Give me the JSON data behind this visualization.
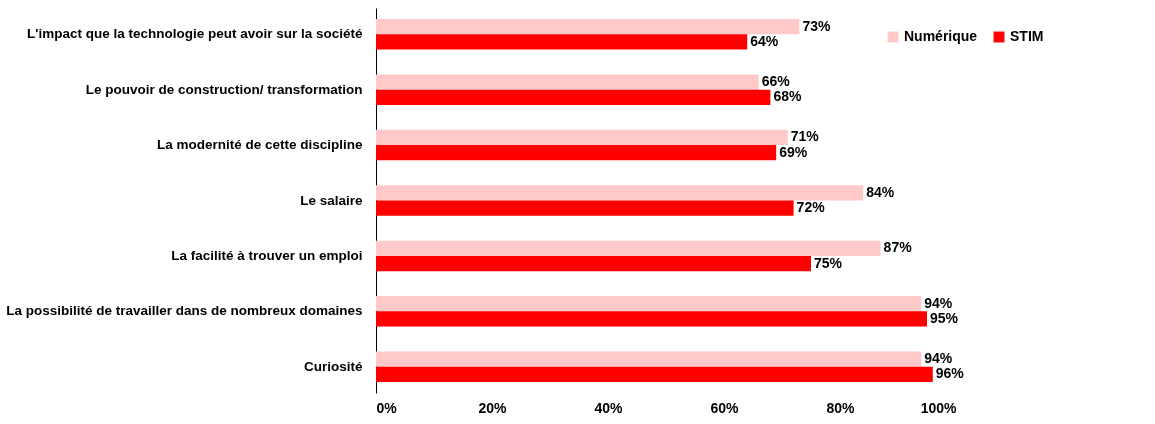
{
  "chart_data": {
    "type": "bar",
    "orientation": "horizontal",
    "categories": [
      "L'impact que la technologie peut avoir sur la société",
      "Le pouvoir de construction/ transformation",
      "La modernité de cette discipline",
      "Le salaire",
      "La facilité à trouver un emploi",
      "La possibilité de travailler dans de nombreux domaines",
      "Curiosité"
    ],
    "series": [
      {
        "name": "Numérique",
        "color": "#ffc9c9",
        "values": [
          73,
          66,
          71,
          84,
          87,
          94,
          94
        ],
        "value_labels": [
          "73%",
          "66%",
          "71%",
          "84%",
          "87%",
          "94%",
          "94%"
        ]
      },
      {
        "name": "STIM",
        "color": "#ff0000",
        "values": [
          64,
          68,
          69,
          72,
          75,
          95,
          96
        ],
        "value_labels": [
          "64%",
          "68%",
          "69%",
          "72%",
          "75%",
          "95%",
          "96%"
        ]
      }
    ],
    "xlim": [
      0,
      100
    ],
    "xticks": [
      {
        "value": 0,
        "label": "0%"
      },
      {
        "value": 20,
        "label": "20%"
      },
      {
        "value": 40,
        "label": "40%"
      },
      {
        "value": 60,
        "label": "60%"
      },
      {
        "value": 80,
        "label": "80%"
      },
      {
        "value": 100,
        "label": "100%"
      }
    ],
    "grid": false,
    "legend": "top right"
  }
}
